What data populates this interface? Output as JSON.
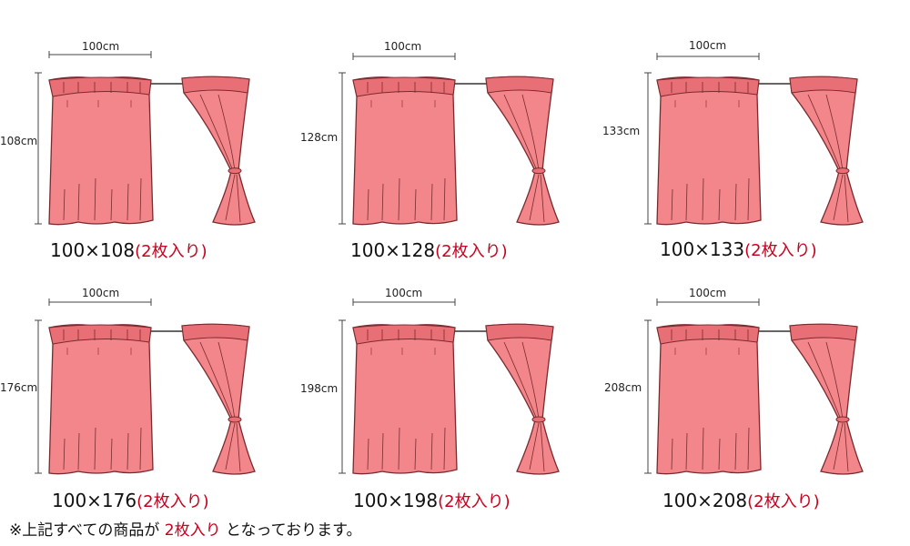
{
  "colors": {
    "curtain_fill": "#f2868a",
    "curtain_shade": "#e86f75",
    "curtain_outline": "#7a2a2e",
    "highlight": "#c8001e"
  },
  "icons": [
    "curtain-panel-illustration",
    "tied-curtain-illustration",
    "curtain-rod"
  ],
  "curtains": [
    {
      "width_label": "100cm",
      "height_label": "108cm",
      "size": "100×108",
      "qty": "(2枚入り)"
    },
    {
      "width_label": "100cm",
      "height_label": "128cm",
      "size": "100×128",
      "qty": "(2枚入り)"
    },
    {
      "width_label": "100cm",
      "height_label": "133cm",
      "size": "100×133",
      "qty": "(2枚入り)"
    },
    {
      "width_label": "100cm",
      "height_label": "176cm",
      "size": "100×176",
      "qty": "(2枚入り)"
    },
    {
      "width_label": "100cm",
      "height_label": "198cm",
      "size": "100×198",
      "qty": "(2枚入り)"
    },
    {
      "width_label": "100cm",
      "height_label": "208cm",
      "size": "100×208",
      "qty": "(2枚入り)"
    }
  ],
  "footnote": {
    "prefix": "※上記すべての商品が",
    "highlight": "2枚入り",
    "suffix": "となっております。"
  }
}
